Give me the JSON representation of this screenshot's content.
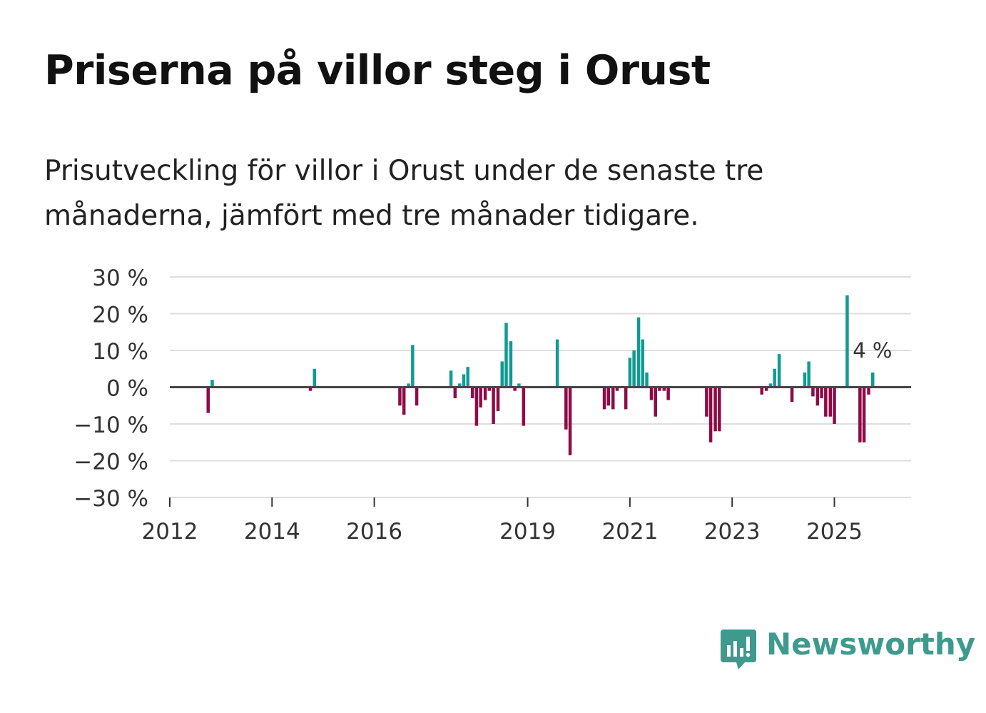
{
  "title": "Priserna på villor steg i Orust",
  "subtitle": "Prisutveckling för villor i Orust under de senaste tre månaderna, jämfört med tre månader tidigare.",
  "brand": {
    "name": "Newsworthy",
    "icon": "newsworthy-logo-icon",
    "color": "#3f9a8e"
  },
  "colors": {
    "positive": "#0f9b94",
    "negative": "#8e0b46",
    "grid": "#dedede",
    "zero_line": "#444444"
  },
  "chart_data": {
    "type": "bar",
    "title": "Priserna på villor steg i Orust",
    "xlabel": "",
    "ylabel": "",
    "ylim": [
      -30,
      30
    ],
    "xlim": [
      2012.0,
      2026.5
    ],
    "y_ticks": [
      30,
      20,
      10,
      0,
      -10,
      -20,
      -30
    ],
    "y_tick_labels": [
      "30 %",
      "20 %",
      "10 %",
      "0 %",
      "−10 %",
      "−20 %",
      "−30 %"
    ],
    "x_ticks": [
      2012,
      2014,
      2016,
      2019,
      2021,
      2023,
      2025
    ],
    "x_tick_labels": [
      "2012",
      "2014",
      "2016",
      "2019",
      "2021",
      "2023",
      "2025"
    ],
    "grid": true,
    "annotation": {
      "text": "4 %",
      "x": 2025.75,
      "y": 4
    },
    "series": [
      {
        "name": "Prisutveckling",
        "x": [
          2012.75,
          2012.83,
          2014.75,
          2014.83,
          2016.5,
          2016.58,
          2016.67,
          2016.75,
          2016.83,
          2017.5,
          2017.58,
          2017.67,
          2017.75,
          2017.83,
          2017.92,
          2018.0,
          2018.08,
          2018.17,
          2018.25,
          2018.33,
          2018.42,
          2018.5,
          2018.58,
          2018.67,
          2018.75,
          2018.83,
          2018.92,
          2019.58,
          2019.75,
          2019.83,
          2020.5,
          2020.58,
          2020.67,
          2020.75,
          2020.92,
          2021.0,
          2021.08,
          2021.17,
          2021.25,
          2021.33,
          2021.42,
          2021.5,
          2021.58,
          2021.67,
          2021.75,
          2022.5,
          2022.58,
          2022.67,
          2022.75,
          2023.58,
          2023.67,
          2023.75,
          2023.83,
          2023.92,
          2024.17,
          2024.42,
          2024.5,
          2024.58,
          2024.67,
          2024.75,
          2024.83,
          2024.92,
          2025.0,
          2025.25,
          2025.5,
          2025.58,
          2025.67,
          2025.75
        ],
        "values": [
          -7,
          2,
          -1,
          5,
          -5,
          -7.5,
          1,
          11.5,
          -5,
          4.5,
          -3,
          1,
          3.5,
          5.5,
          -3,
          -10.5,
          -5.5,
          -3.5,
          -1,
          -10,
          -6.5,
          7,
          17.5,
          12.5,
          -1,
          1,
          -10.5,
          13,
          -11.5,
          -18.5,
          -6,
          -5,
          -6,
          -1,
          -6,
          8,
          10,
          19,
          13,
          4,
          -3.5,
          -8,
          -1,
          -1,
          -3.5,
          -8,
          -15,
          -12,
          -12,
          -2,
          -1,
          1,
          5,
          9,
          -4,
          4,
          7,
          -2.5,
          -5,
          -3,
          -8,
          -8,
          -10,
          25,
          -15,
          -15,
          -2,
          4
        ]
      }
    ]
  }
}
